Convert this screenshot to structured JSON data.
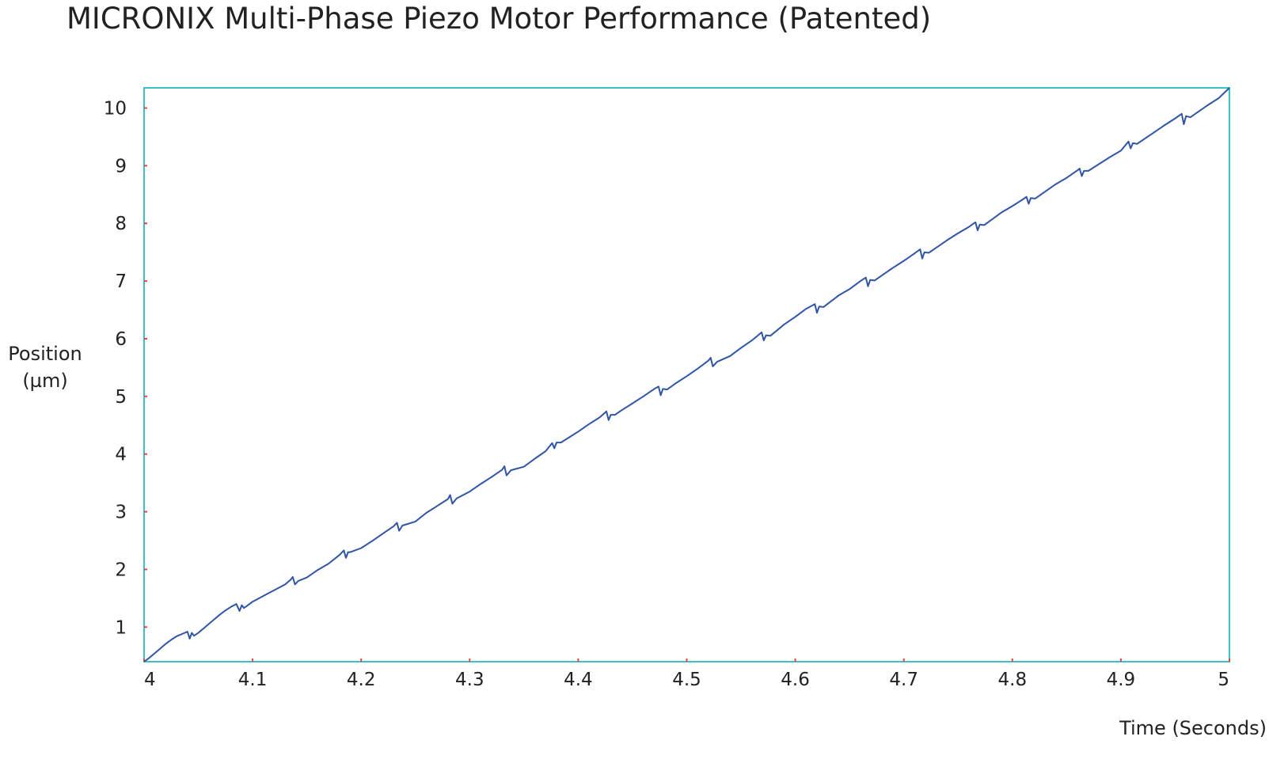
{
  "chart_data": {
    "type": "line",
    "title": "MICRONIX Multi-Phase Piezo Motor Performance (Patented)",
    "xlabel": "Time (Seconds)",
    "ylabel_lines": [
      "Position",
      "(µm)"
    ],
    "xlim": [
      4,
      5
    ],
    "ylim": [
      0.4,
      10.35
    ],
    "x_ticks": [
      "4",
      "4.1",
      "4.2",
      "4.3",
      "4.4",
      "4.5",
      "4.6",
      "4.7",
      "4.8",
      "4.9",
      "5"
    ],
    "y_ticks": [
      "1",
      "2",
      "3",
      "4",
      "5",
      "6",
      "7",
      "8",
      "9",
      "10"
    ],
    "grid": false,
    "colors": {
      "line": "#2f55a4",
      "frame": "#3cc0c8",
      "tick_marks": "#e8463c"
    },
    "series": [
      {
        "x": [
          4.0,
          4.005,
          4.01,
          4.015,
          4.02,
          4.025,
          4.03,
          4.035,
          4.04,
          4.042,
          4.044,
          4.046,
          4.05,
          4.055,
          4.06,
          4.065,
          4.07,
          4.075,
          4.08,
          4.085,
          4.088,
          4.09,
          4.092,
          4.095,
          4.1,
          4.11,
          4.12,
          4.13,
          4.135,
          4.137,
          4.139,
          4.142,
          4.15,
          4.16,
          4.17,
          4.18,
          4.184,
          4.186,
          4.188,
          4.19,
          4.2,
          4.21,
          4.22,
          4.23,
          4.233,
          4.235,
          4.238,
          4.25,
          4.26,
          4.27,
          4.28,
          4.282,
          4.284,
          4.288,
          4.3,
          4.31,
          4.32,
          4.33,
          4.332,
          4.334,
          4.338,
          4.35,
          4.36,
          4.37,
          4.376,
          4.378,
          4.38,
          4.384,
          4.39,
          4.4,
          4.41,
          4.42,
          4.426,
          4.428,
          4.43,
          4.434,
          4.44,
          4.45,
          4.46,
          4.47,
          4.474,
          4.476,
          4.478,
          4.482,
          4.49,
          4.5,
          4.51,
          4.52,
          4.522,
          4.524,
          4.528,
          4.54,
          4.55,
          4.56,
          4.569,
          4.571,
          4.573,
          4.577,
          4.59,
          4.6,
          4.61,
          4.618,
          4.62,
          4.622,
          4.626,
          4.64,
          4.65,
          4.66,
          4.665,
          4.667,
          4.669,
          4.673,
          4.69,
          4.7,
          4.71,
          4.715,
          4.717,
          4.719,
          4.723,
          4.74,
          4.75,
          4.76,
          4.766,
          4.768,
          4.77,
          4.774,
          4.79,
          4.8,
          4.81,
          4.813,
          4.815,
          4.817,
          4.821,
          4.84,
          4.85,
          4.86,
          4.862,
          4.864,
          4.866,
          4.87,
          4.89,
          4.9,
          4.907,
          4.909,
          4.911,
          4.915,
          4.93,
          4.94,
          4.95,
          4.956,
          4.958,
          4.96,
          4.964,
          4.98,
          4.99,
          5.0
        ],
        "values": [
          0.4,
          0.47,
          0.55,
          0.63,
          0.71,
          0.78,
          0.84,
          0.88,
          0.92,
          0.8,
          0.9,
          0.85,
          0.9,
          0.98,
          1.06,
          1.14,
          1.22,
          1.29,
          1.35,
          1.4,
          1.28,
          1.38,
          1.33,
          1.37,
          1.44,
          1.54,
          1.64,
          1.74,
          1.82,
          1.87,
          1.74,
          1.8,
          1.86,
          1.99,
          2.1,
          2.25,
          2.33,
          2.2,
          2.3,
          2.3,
          2.37,
          2.49,
          2.62,
          2.75,
          2.81,
          2.67,
          2.76,
          2.83,
          2.98,
          3.1,
          3.22,
          3.29,
          3.14,
          3.23,
          3.35,
          3.48,
          3.6,
          3.73,
          3.79,
          3.63,
          3.72,
          3.78,
          3.92,
          4.05,
          4.19,
          4.1,
          4.2,
          4.2,
          4.27,
          4.39,
          4.52,
          4.64,
          4.74,
          4.59,
          4.68,
          4.68,
          4.76,
          4.88,
          5.0,
          5.13,
          5.17,
          5.02,
          5.13,
          5.12,
          5.23,
          5.35,
          5.48,
          5.62,
          5.67,
          5.52,
          5.6,
          5.7,
          5.84,
          5.97,
          6.11,
          5.97,
          6.06,
          6.05,
          6.25,
          6.38,
          6.52,
          6.6,
          6.45,
          6.56,
          6.55,
          6.75,
          6.86,
          7.0,
          7.06,
          6.91,
          7.02,
          7.01,
          7.23,
          7.35,
          7.48,
          7.55,
          7.39,
          7.5,
          7.49,
          7.71,
          7.83,
          7.94,
          8.02,
          7.88,
          7.98,
          7.97,
          8.19,
          8.3,
          8.42,
          8.46,
          8.34,
          8.44,
          8.43,
          8.68,
          8.79,
          8.92,
          8.95,
          8.82,
          8.91,
          8.91,
          9.15,
          9.26,
          9.42,
          9.3,
          9.39,
          9.38,
          9.57,
          9.7,
          9.82,
          9.9,
          9.72,
          9.86,
          9.84,
          10.05,
          10.17,
          10.35
        ]
      }
    ]
  }
}
